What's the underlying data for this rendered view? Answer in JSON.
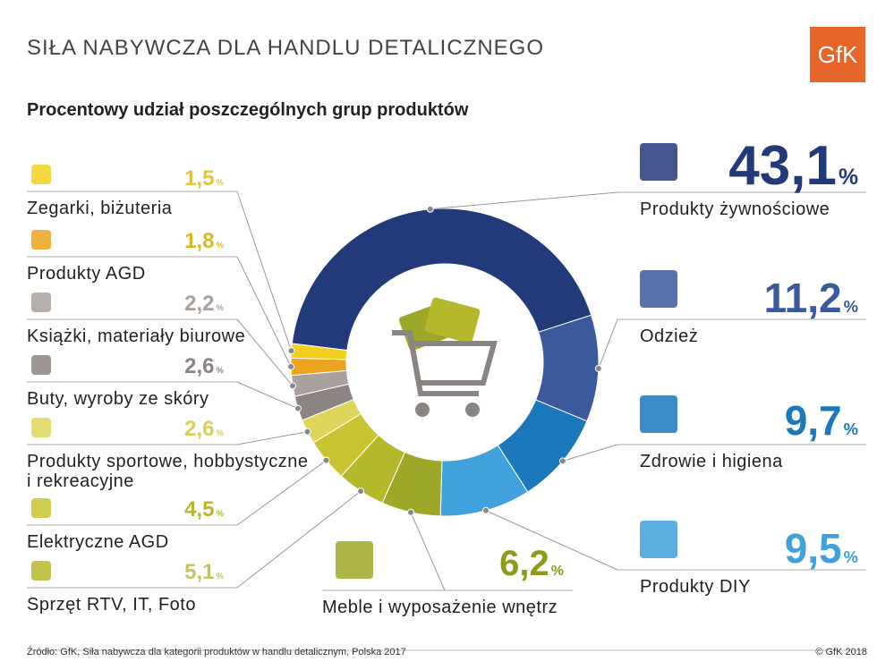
{
  "title": "SIŁA NABYWCZA DLA HANDLU DETALICZNEGO",
  "logo": "GfK",
  "source": "Źródło: GfK, Siła nabywcza dla kategorii produktów w handlu detalicznym, Polska 2017",
  "copyright": "© GfK 2018",
  "chart_data": {
    "type": "pie",
    "donut": true,
    "subtitle": "Procentowy udział poszczególnych grup produktów",
    "categories": [
      "Produkty żywnościowe",
      "Odzież",
      "Zdrowie i higiena",
      "Produkty DIY",
      "Meble i wyposażenie wnętrz",
      "Sprzęt RTV, IT, Foto",
      "Elektryczne AGD",
      "Produkty sportowe, hobbystyczne i rekreacyjne",
      "Buty, wyroby ze skóry",
      "Książki, materiały biurowe",
      "Produkty AGD",
      "Zegarki, biżuteria"
    ],
    "values": [
      43.1,
      11.2,
      9.7,
      9.5,
      6.2,
      5.1,
      4.5,
      2.6,
      2.6,
      2.2,
      1.8,
      1.5
    ],
    "value_labels": [
      "43,1",
      "11,2",
      "9,7",
      "9,5",
      "6,2",
      "5,1",
      "4,5",
      "2,6",
      "2,6",
      "2,2",
      "1,8",
      "1,5"
    ],
    "percent_sign": "%",
    "colors": [
      "#22397a",
      "#3b5a9d",
      "#1b78bd",
      "#41a1dc",
      "#9ea828",
      "#b6b82c",
      "#c9c431",
      "#ddd65a",
      "#8c8482",
      "#a9a19d",
      "#eca41f",
      "#f3d01f"
    ]
  }
}
